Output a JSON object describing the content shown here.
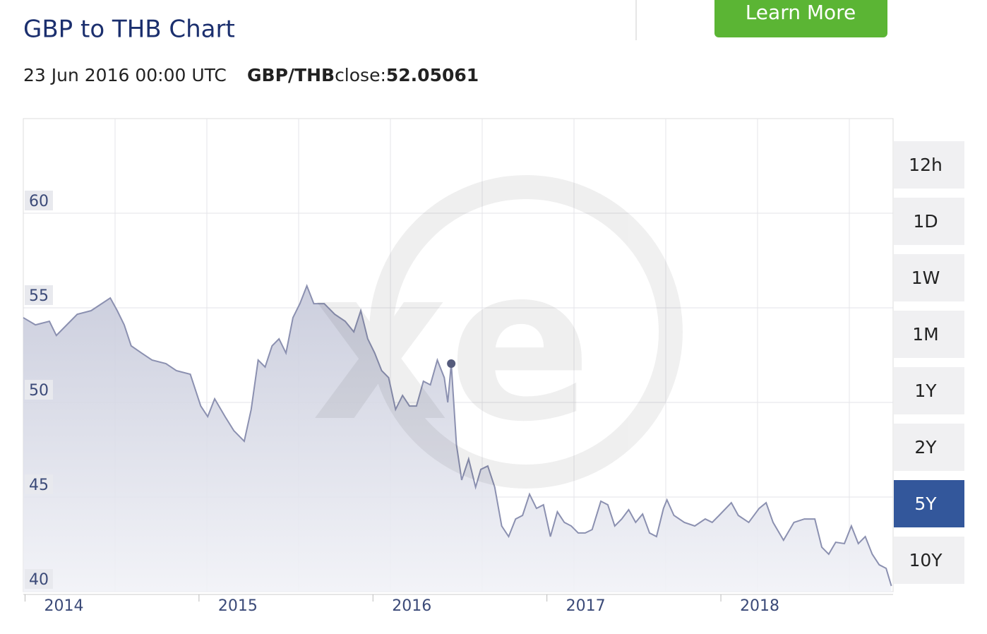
{
  "chart_data": {
    "type": "area",
    "title": "GBP to THB Chart",
    "date_label": "23 Jun 2016 00:00 UTC",
    "pair": "GBP/THB",
    "close_label": "close:",
    "button": "Learn More",
    "ranges": [
      "12h",
      "1D",
      "1W",
      "1M",
      "1Y",
      "2Y",
      "5Y",
      "10Y"
    ],
    "active_range": "5Y",
    "color": "#8b90b0",
    "marker": {
      "x": 2016.45,
      "y": 52.05061
    },
    "xlim": [
      2013.99,
      2018.99
    ],
    "xticks": [
      2014,
      2015,
      2016,
      2017,
      2018
    ],
    "ylim": [
      40,
      65
    ],
    "yticks": [
      40,
      45,
      50,
      55,
      60
    ],
    "grid": true,
    "x": [
      2013.99,
      2014.06,
      2014.14,
      2014.18,
      2014.24,
      2014.3,
      2014.38,
      2014.49,
      2014.53,
      2014.57,
      2014.61,
      2014.67,
      2014.73,
      2014.81,
      2014.87,
      2014.95,
      2015.01,
      2015.05,
      2015.09,
      2015.15,
      2015.2,
      2015.26,
      2015.3,
      2015.34,
      2015.38,
      2015.42,
      2015.46,
      2015.5,
      2015.54,
      2015.58,
      2015.62,
      2015.66,
      2015.72,
      2015.78,
      2015.84,
      2015.89,
      2015.93,
      2015.97,
      2016.01,
      2016.05,
      2016.09,
      2016.13,
      2016.17,
      2016.21,
      2016.25,
      2016.29,
      2016.33,
      2016.37,
      2016.41,
      2016.43,
      2016.45,
      2016.48,
      2016.51,
      2016.55,
      2016.59,
      2016.62,
      2016.66,
      2016.7,
      2016.74,
      2016.78,
      2016.82,
      2016.86,
      2016.9,
      2016.94,
      2016.98,
      2017.02,
      2017.06,
      2017.1,
      2017.14,
      2017.18,
      2017.22,
      2017.26,
      2017.31,
      2017.35,
      2017.39,
      2017.43,
      2017.47,
      2017.51,
      2017.55,
      2017.59,
      2017.63,
      2017.67,
      2017.69,
      2017.73,
      2017.79,
      2017.85,
      2017.91,
      2017.95,
      2017.99,
      2018.06,
      2018.1,
      2018.16,
      2018.22,
      2018.26,
      2018.3,
      2018.36,
      2018.42,
      2018.48,
      2018.54,
      2018.58,
      2018.62,
      2018.66,
      2018.71,
      2018.75,
      2018.79,
      2018.83,
      2018.87,
      2018.91,
      2018.95,
      2018.98
    ],
    "values": [
      54.48,
      54.1,
      54.29,
      53.54,
      54.1,
      54.66,
      54.85,
      55.52,
      54.85,
      54.1,
      52.99,
      52.61,
      52.24,
      52.05,
      51.68,
      51.49,
      49.81,
      49.25,
      50.19,
      49.25,
      48.51,
      47.95,
      49.63,
      52.24,
      51.87,
      52.99,
      53.36,
      52.61,
      54.48,
      55.22,
      56.16,
      55.22,
      55.22,
      54.66,
      54.29,
      53.73,
      54.85,
      53.36,
      52.61,
      51.68,
      51.31,
      49.63,
      50.37,
      49.81,
      49.81,
      51.12,
      50.93,
      52.24,
      51.31,
      50.0,
      52.05061,
      47.76,
      45.9,
      47.01,
      45.52,
      46.46,
      46.64,
      45.52,
      43.47,
      42.91,
      43.84,
      44.03,
      45.15,
      44.4,
      44.59,
      42.91,
      44.22,
      43.66,
      43.47,
      43.1,
      43.1,
      43.28,
      44.78,
      44.59,
      43.47,
      43.84,
      44.33,
      43.66,
      44.1,
      43.1,
      42.91,
      44.4,
      44.85,
      44.03,
      43.66,
      43.47,
      43.84,
      43.66,
      44.03,
      44.7,
      44.03,
      43.66,
      44.4,
      44.7,
      43.66,
      42.72,
      43.66,
      43.84,
      43.84,
      42.35,
      41.98,
      42.61,
      42.54,
      43.47,
      42.54,
      42.91,
      41.98,
      41.42,
      41.23,
      40.3
    ]
  }
}
